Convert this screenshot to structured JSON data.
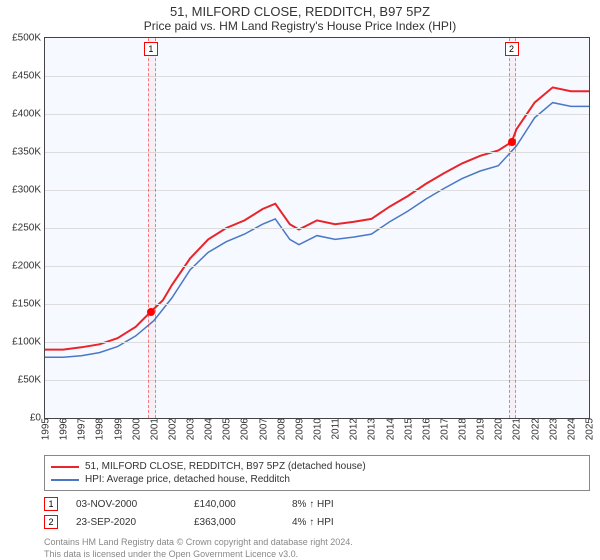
{
  "title": "51, MILFORD CLOSE, REDDITCH, B97 5PZ",
  "subtitle": "Price paid vs. HM Land Registry's House Price Index (HPI)",
  "chart": {
    "type": "line",
    "background_color": "#f6f9ff",
    "grid_color": "#dddddd",
    "border_color": "#444444",
    "x_min": 1995,
    "x_max": 2025,
    "y_min": 0,
    "y_max": 500000,
    "y_ticks": [
      0,
      50000,
      100000,
      150000,
      200000,
      250000,
      300000,
      350000,
      400000,
      450000,
      500000
    ],
    "y_tick_labels": [
      "£0",
      "£50K",
      "£100K",
      "£150K",
      "£200K",
      "£250K",
      "£300K",
      "£350K",
      "£400K",
      "£450K",
      "£500K"
    ],
    "x_ticks": [
      1995,
      1996,
      1997,
      1998,
      1999,
      2000,
      2001,
      2002,
      2003,
      2004,
      2005,
      2006,
      2007,
      2008,
      2009,
      2010,
      2011,
      2012,
      2013,
      2014,
      2015,
      2016,
      2017,
      2018,
      2019,
      2020,
      2021,
      2022,
      2023,
      2024,
      2025
    ],
    "label_fontsize": 10,
    "series": [
      {
        "name": "price_paid",
        "color": "#e8252a",
        "width": 2,
        "data": [
          [
            1995,
            90000
          ],
          [
            1996,
            90000
          ],
          [
            1997,
            93000
          ],
          [
            1998,
            97000
          ],
          [
            1999,
            105000
          ],
          [
            2000,
            120000
          ],
          [
            2000.84,
            140000
          ],
          [
            2001.5,
            155000
          ],
          [
            2002,
            175000
          ],
          [
            2003,
            210000
          ],
          [
            2004,
            235000
          ],
          [
            2005,
            250000
          ],
          [
            2006,
            260000
          ],
          [
            2007,
            275000
          ],
          [
            2007.7,
            282000
          ],
          [
            2008.5,
            255000
          ],
          [
            2009,
            248000
          ],
          [
            2010,
            260000
          ],
          [
            2011,
            255000
          ],
          [
            2012,
            258000
          ],
          [
            2013,
            262000
          ],
          [
            2014,
            278000
          ],
          [
            2015,
            292000
          ],
          [
            2016,
            308000
          ],
          [
            2017,
            322000
          ],
          [
            2018,
            335000
          ],
          [
            2019,
            345000
          ],
          [
            2020,
            352000
          ],
          [
            2020.73,
            363000
          ],
          [
            2021,
            380000
          ],
          [
            2022,
            415000
          ],
          [
            2023,
            435000
          ],
          [
            2024,
            430000
          ],
          [
            2025,
            430000
          ]
        ]
      },
      {
        "name": "hpi",
        "color": "#4a78c4",
        "width": 1.5,
        "data": [
          [
            1995,
            80000
          ],
          [
            1996,
            80000
          ],
          [
            1997,
            82000
          ],
          [
            1998,
            86000
          ],
          [
            1999,
            94000
          ],
          [
            2000,
            108000
          ],
          [
            2001,
            128000
          ],
          [
            2002,
            158000
          ],
          [
            2003,
            195000
          ],
          [
            2004,
            218000
          ],
          [
            2005,
            232000
          ],
          [
            2006,
            242000
          ],
          [
            2007,
            255000
          ],
          [
            2007.7,
            262000
          ],
          [
            2008.5,
            235000
          ],
          [
            2009,
            228000
          ],
          [
            2010,
            240000
          ],
          [
            2011,
            235000
          ],
          [
            2012,
            238000
          ],
          [
            2013,
            242000
          ],
          [
            2014,
            258000
          ],
          [
            2015,
            272000
          ],
          [
            2016,
            288000
          ],
          [
            2017,
            302000
          ],
          [
            2018,
            315000
          ],
          [
            2019,
            325000
          ],
          [
            2020,
            332000
          ],
          [
            2021,
            358000
          ],
          [
            2022,
            395000
          ],
          [
            2023,
            415000
          ],
          [
            2024,
            410000
          ],
          [
            2025,
            410000
          ]
        ]
      }
    ],
    "sale_markers": [
      {
        "n": "1",
        "x": 2000.84,
        "y": 140000,
        "band_width": 0.3
      },
      {
        "n": "2",
        "x": 2020.73,
        "y": 363000,
        "band_width": 0.3
      }
    ]
  },
  "legend": {
    "items": [
      {
        "color": "#e8252a",
        "label": "51, MILFORD CLOSE, REDDITCH, B97 5PZ (detached house)"
      },
      {
        "color": "#4a78c4",
        "label": "HPI: Average price, detached house, Redditch"
      }
    ]
  },
  "sales": [
    {
      "n": "1",
      "date": "03-NOV-2000",
      "price": "£140,000",
      "delta": "8% ↑ HPI"
    },
    {
      "n": "2",
      "date": "23-SEP-2020",
      "price": "£363,000",
      "delta": "4% ↑ HPI"
    }
  ],
  "footer": {
    "line1": "Contains HM Land Registry data © Crown copyright and database right 2024.",
    "line2": "This data is licensed under the Open Government Licence v3.0."
  }
}
